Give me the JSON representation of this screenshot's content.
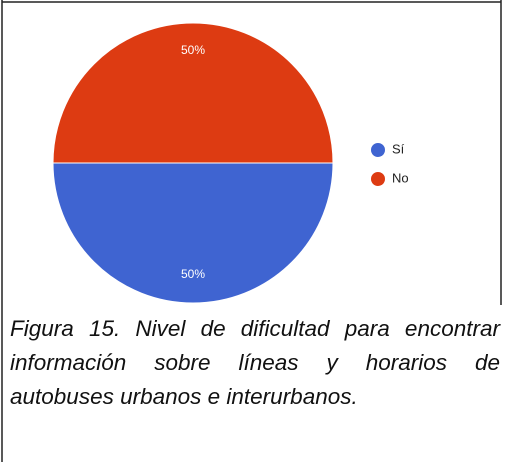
{
  "chart_data": {
    "type": "pie",
    "categories": [
      "Sí",
      "No"
    ],
    "values": [
      50,
      50
    ],
    "value_labels": [
      "50%",
      "50%"
    ],
    "colors": [
      "#3f64d1",
      "#dd3b12"
    ]
  },
  "caption": "Figura 15. Nivel de dificultad para encontrar información sobre líneas y horarios de autobuses urbanos e interurbanos."
}
